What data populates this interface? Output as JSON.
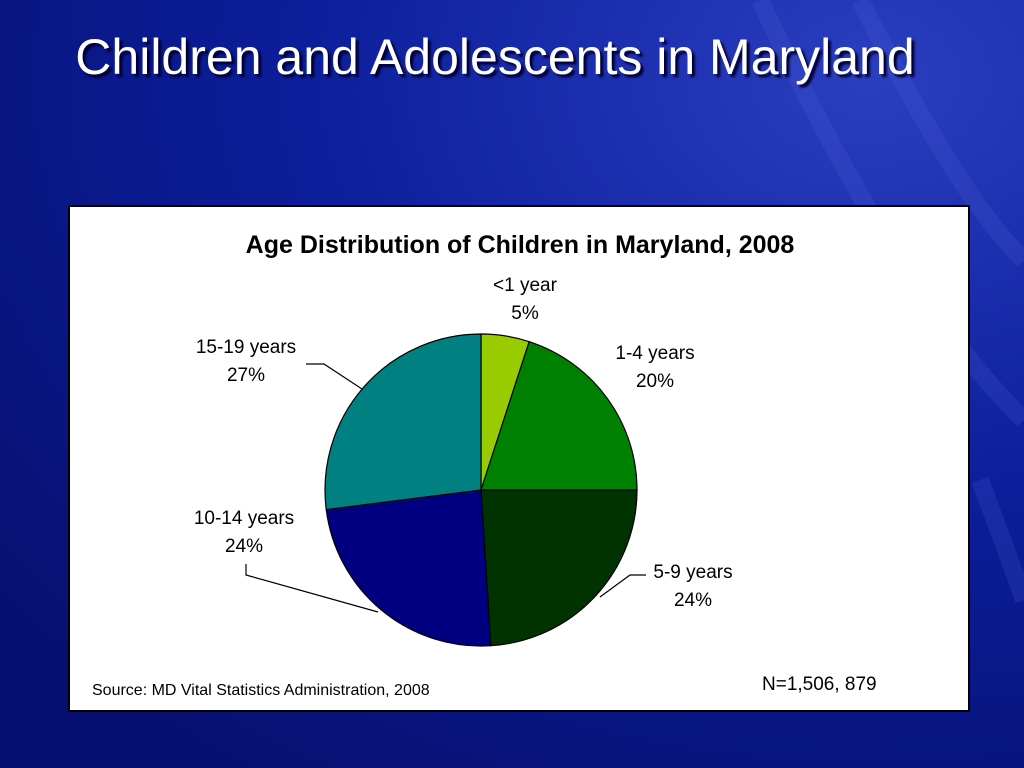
{
  "slide": {
    "title": "Children and Adolescents in Maryland"
  },
  "colors": {
    "background": "#0a1a8c",
    "title_text": "#ffffff",
    "panel": "#ffffff"
  },
  "chart_data": {
    "type": "pie",
    "title": "Age Distribution of Children in Maryland, 2008",
    "start_angle_deg": 0,
    "direction": "clockwise",
    "slices": [
      {
        "label": "<1 year",
        "value": 5,
        "value_label": "5%",
        "color": "#99cc00"
      },
      {
        "label": "1-4 years",
        "value": 20,
        "value_label": "20%",
        "color": "#008000"
      },
      {
        "label": "5-9 years",
        "value": 24,
        "value_label": "24%",
        "color": "#003300"
      },
      {
        "label": "10-14 years",
        "value": 24,
        "value_label": "24%",
        "color": "#000080"
      },
      {
        "label": "15-19 years",
        "value": 27,
        "value_label": "27%",
        "color": "#008080"
      }
    ],
    "source": "Source: MD Vital Statistics Administration, 2008",
    "n_note": "N=1,506, 879"
  }
}
